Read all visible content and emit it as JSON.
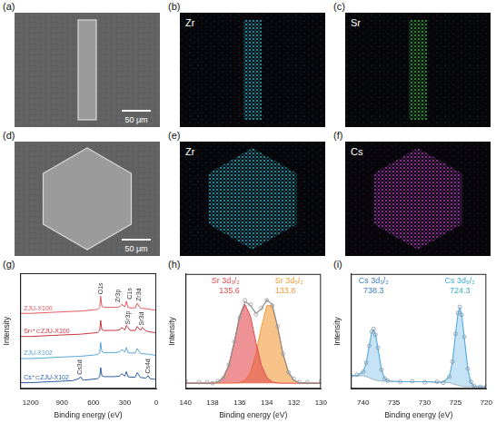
{
  "images": [
    {
      "panel": "(a)",
      "kind": "SEM image",
      "shape": "rod",
      "scale_bar": "50 μm"
    },
    {
      "panel": "(b)",
      "kind": "EDS map",
      "shape": "rod",
      "element": "Zr",
      "color": "#32c3d3"
    },
    {
      "panel": "(c)",
      "kind": "EDS map",
      "shape": "rod",
      "element": "Sr",
      "color": "#3fbf3f"
    },
    {
      "panel": "(d)",
      "kind": "SEM image",
      "shape": "hexagon",
      "scale_bar": "50 μm"
    },
    {
      "panel": "(e)",
      "kind": "EDS map",
      "shape": "hexagon",
      "element": "Zr",
      "color": "#32c3d3"
    },
    {
      "panel": "(f)",
      "kind": "EDS map",
      "shape": "hexagon",
      "element": "Cs",
      "color": "#c23fc8"
    }
  ],
  "chart_data": [
    {
      "panel": "(g)",
      "type": "line",
      "x_label": "Binding energy (eV)",
      "y_label": "Intensity",
      "xlim": [
        1300,
        0
      ],
      "xticks": [
        1200,
        900,
        600,
        300,
        0
      ],
      "ylim": [
        0,
        115
      ],
      "tick_labels": "x",
      "grid": false,
      "x": [
        1300,
        1200,
        1100,
        1000,
        900,
        800,
        738,
        724,
        700,
        650,
        600,
        560,
        540,
        531,
        520,
        500,
        450,
        400,
        350,
        330,
        300,
        285,
        270,
        250,
        200,
        182,
        150,
        134,
        100,
        77,
        60,
        20,
        0
      ],
      "series": [
        {
          "name": "ZJU-X100",
          "color": "#e05a5e",
          "values": [
            75,
            75,
            75.5,
            76,
            76.5,
            77,
            77.2,
            77.3,
            77.5,
            78,
            78.5,
            79,
            81,
            92,
            82,
            81,
            81,
            81,
            81.5,
            84,
            81.5,
            87,
            81,
            80.5,
            80.5,
            85,
            80,
            80,
            79.5,
            79.5,
            79,
            78.5,
            78
          ]
        },
        {
          "name": "Sr²⁺⊂ZJU-X100",
          "color": "#c9343f",
          "values": [
            52,
            52,
            52.5,
            53,
            53.5,
            54,
            54.2,
            54.3,
            54.5,
            55,
            55.5,
            56,
            58,
            68,
            59,
            58,
            58,
            58,
            58.5,
            61,
            58.5,
            63,
            61,
            58,
            58,
            62,
            58,
            61,
            57.5,
            57,
            56.5,
            56,
            55.5
          ]
        },
        {
          "name": "ZJU-X102",
          "color": "#55a5d8",
          "values": [
            30,
            30,
            30.5,
            31,
            31.5,
            32,
            32.2,
            32.3,
            32.5,
            33,
            33.5,
            34,
            36,
            46,
            37,
            36,
            36,
            36,
            36.5,
            39,
            36.5,
            41,
            36,
            35.5,
            35.5,
            40,
            35,
            35,
            34.5,
            34.5,
            34,
            33.5,
            33
          ]
        },
        {
          "name": "Cs⁺⊂ZJU-X102",
          "color": "#2a5d9f",
          "values": [
            6,
            6,
            6.5,
            7,
            7.5,
            8,
            10,
            12,
            8.5,
            9,
            9.5,
            10,
            12,
            21,
            13,
            12,
            12,
            12,
            12.5,
            15,
            12.5,
            17,
            12,
            11.5,
            11.5,
            16,
            11,
            11,
            10.5,
            13,
            10,
            9.5,
            9
          ]
        }
      ],
      "annotations": [
        {
          "text": "O1s",
          "x": 531,
          "y": 94
        },
        {
          "text": "Zr3p",
          "x": 360,
          "y": 86
        },
        {
          "text": "C1s",
          "x": 255,
          "y": 89
        },
        {
          "text": "Zr3d",
          "x": 165,
          "y": 87
        },
        {
          "text": "Sr3p",
          "x": 270,
          "y": 64
        },
        {
          "text": "Sr3d",
          "x": 134,
          "y": 63
        },
        {
          "text": "Cs3d",
          "x": 731,
          "y": 14
        },
        {
          "text": "Cs4d",
          "x": 77,
          "y": 15
        }
      ]
    },
    {
      "panel": "(h)",
      "type": "line",
      "x_label": "Binding energy (eV)",
      "y_label": "Intensity",
      "xlim": [
        140,
        130
      ],
      "xticks": [
        140,
        138,
        136,
        134,
        132,
        130
      ],
      "ylim": [
        -0.05,
        1.0
      ],
      "tick_labels": "x",
      "grid": false,
      "x": [
        140,
        139,
        138.4,
        138,
        137.6,
        137.2,
        136.8,
        136.4,
        136,
        135.6,
        135.2,
        134.8,
        134.4,
        134,
        133.6,
        133.2,
        132.8,
        132.4,
        132,
        131.6,
        131,
        130
      ],
      "components": [
        {
          "name": "Sr 3d₃/₂",
          "peak": 135.6,
          "color": "#e34a4f",
          "values": [
            0,
            0,
            0,
            0.002,
            0.012,
            0.053,
            0.166,
            0.374,
            0.611,
            0.72,
            0.611,
            0.374,
            0.166,
            0.053,
            0.012,
            0.002,
            0,
            0,
            0,
            0,
            0,
            0
          ]
        },
        {
          "name": "Sr 3d₅/₂",
          "peak": 133.8,
          "color": "#f29b38",
          "values": [
            0,
            0,
            0,
            0,
            0,
            0,
            0,
            0.001,
            0.005,
            0.027,
            0.1,
            0.266,
            0.513,
            0.71,
            0.71,
            0.513,
            0.266,
            0.1,
            0.027,
            0.005,
            0,
            0
          ]
        }
      ],
      "fit": {
        "color": "#8c8c8c",
        "values": [
          0,
          0,
          0,
          0.002,
          0.012,
          0.053,
          0.166,
          0.375,
          0.616,
          0.747,
          0.711,
          0.64,
          0.679,
          0.763,
          0.722,
          0.515,
          0.266,
          0.1,
          0.027,
          0.005,
          0,
          0
        ]
      },
      "measured": {
        "color": "#9a9a9a",
        "marker": "circle",
        "values": [
          0.02,
          0.01,
          0.01,
          0.0,
          0.02,
          0.05,
          0.17,
          0.38,
          0.6,
          0.76,
          0.72,
          0.63,
          0.69,
          0.76,
          0.71,
          0.52,
          0.27,
          0.1,
          0.04,
          0.01,
          0.01,
          0.02
        ]
      }
    },
    {
      "panel": "(i)",
      "type": "line",
      "x_label": "Binding energy (eV)",
      "y_label": "Intensity",
      "xlim": [
        742,
        720
      ],
      "xticks": [
        740,
        735,
        730,
        725,
        720
      ],
      "ylim": [
        0,
        1.15
      ],
      "tick_labels": "x",
      "grid": false,
      "x": [
        742,
        741,
        740,
        739.5,
        739,
        738.6,
        738.3,
        738,
        737.6,
        737,
        736.5,
        736,
        734,
        732,
        730,
        728,
        727,
        726,
        725.5,
        725,
        724.6,
        724.3,
        724,
        723.6,
        723,
        722.5,
        722,
        721,
        720
      ],
      "components": [
        {
          "name": "Cs 3d₃/₂",
          "peak": 738.3,
          "color": "#3d7fc1"
        },
        {
          "name": "Cs 3d₅/₂",
          "peak": 724.3,
          "color": "#3aaecb"
        }
      ],
      "background": {
        "color": "#9aa4ad",
        "values": [
          0.13,
          0.13,
          0.13,
          0.12,
          0.11,
          0.1,
          0.09,
          0.085,
          0.08,
          0.075,
          0.075,
          0.075,
          0.07,
          0.07,
          0.07,
          0.065,
          0.065,
          0.06,
          0.05,
          0.04,
          0.035,
          0.03,
          0.025,
          0.02,
          0.02,
          0.02,
          0.02,
          0.02,
          0.02
        ]
      },
      "fit": {
        "color": "#5aaee0",
        "values": [
          0.13,
          0.131,
          0.169,
          0.259,
          0.434,
          0.562,
          0.59,
          0.547,
          0.404,
          0.186,
          0.103,
          0.079,
          0.07,
          0.07,
          0.07,
          0.065,
          0.066,
          0.12,
          0.267,
          0.545,
          0.755,
          0.81,
          0.745,
          0.525,
          0.193,
          0.064,
          0.027,
          0.02,
          0.02
        ]
      },
      "measured": {
        "color": "#8794a6",
        "marker": "circle",
        "values": [
          0.13,
          0.14,
          0.17,
          0.26,
          0.43,
          0.57,
          0.6,
          0.54,
          0.41,
          0.19,
          0.1,
          0.08,
          0.07,
          0.075,
          0.065,
          0.07,
          0.06,
          0.12,
          0.27,
          0.55,
          0.76,
          0.82,
          0.74,
          0.52,
          0.2,
          0.07,
          0.03,
          0.02,
          0.02
        ]
      }
    }
  ]
}
